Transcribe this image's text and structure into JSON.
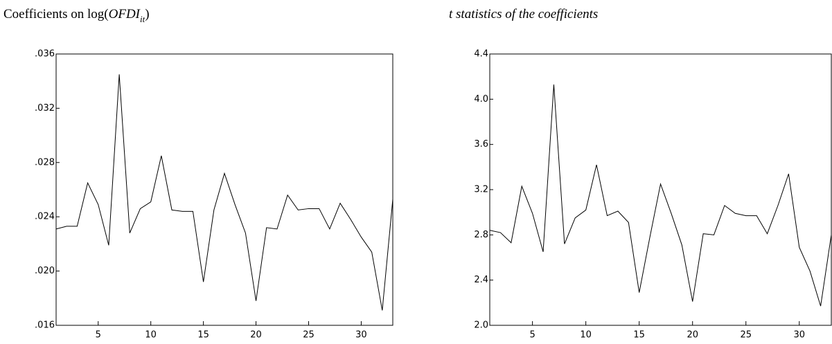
{
  "chart_data": [
    {
      "type": "line",
      "title": [
        "Coefficients on log(",
        "OFDI",
        "it",
        ")"
      ],
      "x": [
        1,
        2,
        3,
        4,
        5,
        6,
        7,
        8,
        9,
        10,
        11,
        12,
        13,
        14,
        15,
        16,
        17,
        18,
        19,
        20,
        21,
        22,
        23,
        24,
        25,
        26,
        27,
        28,
        29,
        30,
        31,
        32,
        33
      ],
      "values": [
        0.0231,
        0.0233,
        0.0233,
        0.0265,
        0.0249,
        0.0219,
        0.0345,
        0.0228,
        0.0246,
        0.0251,
        0.0285,
        0.0245,
        0.0244,
        0.0244,
        0.0192,
        0.0245,
        0.0272,
        0.0249,
        0.0228,
        0.0178,
        0.0232,
        0.0231,
        0.0256,
        0.0245,
        0.0246,
        0.0246,
        0.0231,
        0.025,
        0.0238,
        0.0225,
        0.0214,
        0.0171,
        0.0253
      ],
      "color": "#000000",
      "xlim": [
        1,
        33
      ],
      "xticks": [
        5,
        10,
        15,
        20,
        25,
        30
      ],
      "ylim": [
        0.016,
        0.036
      ],
      "yticks": [
        {
          "value": 0.016,
          "label": ".016"
        },
        {
          "value": 0.02,
          "label": ".020"
        },
        {
          "value": 0.024,
          "label": ".024"
        },
        {
          "value": 0.028,
          "label": ".028"
        },
        {
          "value": 0.032,
          "label": ".032"
        },
        {
          "value": 0.036,
          "label": ".036"
        }
      ]
    },
    {
      "type": "line",
      "title": [
        "t",
        " statistics of the coefficients"
      ],
      "x": [
        1,
        2,
        3,
        4,
        5,
        6,
        7,
        8,
        9,
        10,
        11,
        12,
        13,
        14,
        15,
        16,
        17,
        18,
        19,
        20,
        21,
        22,
        23,
        24,
        25,
        26,
        27,
        28,
        29,
        30,
        31,
        32,
        33
      ],
      "values": [
        2.84,
        2.82,
        2.73,
        3.23,
        2.99,
        2.65,
        4.13,
        2.72,
        2.95,
        3.02,
        3.42,
        2.97,
        3.01,
        2.91,
        2.29,
        2.78,
        3.25,
        2.99,
        2.71,
        2.21,
        2.81,
        2.8,
        3.06,
        2.99,
        2.97,
        2.97,
        2.81,
        3.06,
        3.34,
        2.69,
        2.48,
        2.17,
        2.8
      ],
      "color": "#000000",
      "xlim": [
        1,
        33
      ],
      "xticks": [
        5,
        10,
        15,
        20,
        25,
        30
      ],
      "ylim": [
        2.0,
        4.4
      ],
      "yticks": [
        {
          "value": 2.0,
          "label": "2.0"
        },
        2.4,
        2.8,
        3.2,
        3.6,
        {
          "value": 4.0,
          "label": "4.0"
        },
        4.4
      ]
    }
  ]
}
